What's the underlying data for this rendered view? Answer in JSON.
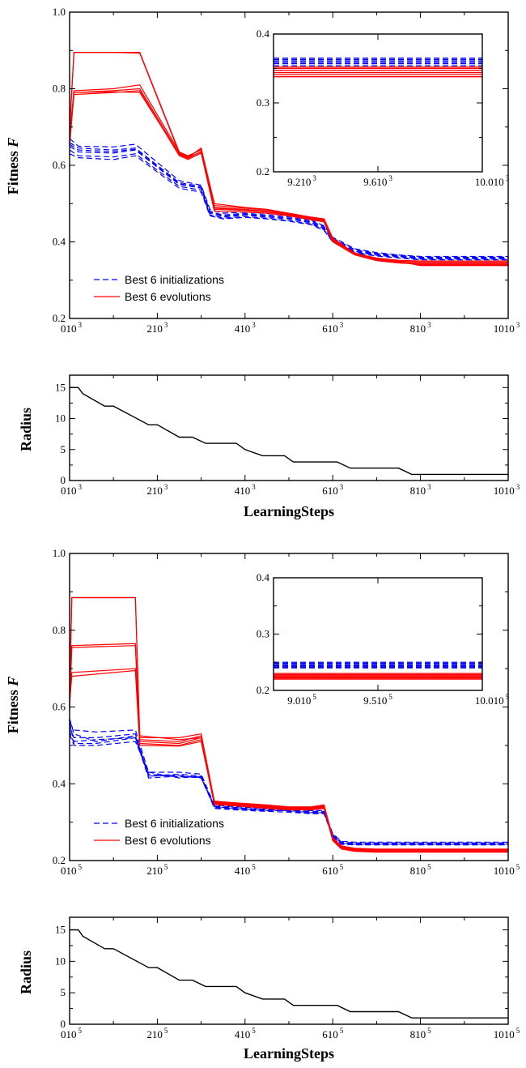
{
  "chart_data": [
    {
      "type": "line",
      "ylabel": "Fitness F",
      "xlim": [
        0,
        1000
      ],
      "ylim": [
        0.2,
        1.0
      ],
      "xticks": [
        "010 3",
        "210 3",
        "410 3",
        "610 3",
        "810 3",
        "1010 3"
      ],
      "yticks": [
        "0.2",
        "0.4",
        "0.6",
        "0.8",
        "1.0"
      ],
      "legend": {
        "position": "lower-left",
        "entries": [
          "Best 6 initializations",
          "Best 6 evolutions"
        ]
      },
      "series": [
        {
          "name": "Best 6 initializations",
          "style": "dashed",
          "color": "#0000ff",
          "x": [
            0,
            20,
            100,
            150,
            250,
            300,
            320,
            350,
            400,
            450,
            500,
            550,
            580,
            600,
            650,
            700,
            750,
            800,
            1000
          ],
          "curves": [
            [
              0.66,
              0.645,
              0.64,
              0.645,
              0.555,
              0.545,
              0.48,
              0.47,
              0.475,
              0.47,
              0.465,
              0.455,
              0.44,
              0.41,
              0.38,
              0.37,
              0.365,
              0.36,
              0.36
            ],
            [
              0.65,
              0.635,
              0.632,
              0.64,
              0.55,
              0.54,
              0.475,
              0.465,
              0.47,
              0.465,
              0.46,
              0.45,
              0.435,
              0.405,
              0.375,
              0.367,
              0.362,
              0.357,
              0.357
            ],
            [
              0.64,
              0.625,
              0.622,
              0.63,
              0.545,
              0.535,
              0.47,
              0.462,
              0.466,
              0.462,
              0.456,
              0.447,
              0.432,
              0.402,
              0.373,
              0.365,
              0.36,
              0.355,
              0.355
            ],
            [
              0.67,
              0.65,
              0.648,
              0.655,
              0.56,
              0.548,
              0.485,
              0.475,
              0.478,
              0.474,
              0.468,
              0.458,
              0.442,
              0.412,
              0.382,
              0.372,
              0.366,
              0.362,
              0.362
            ],
            [
              0.63,
              0.62,
              0.615,
              0.625,
              0.54,
              0.53,
              0.468,
              0.46,
              0.464,
              0.46,
              0.454,
              0.445,
              0.43,
              0.4,
              0.371,
              0.363,
              0.358,
              0.353,
              0.353
            ],
            [
              0.655,
              0.64,
              0.636,
              0.642,
              0.552,
              0.542,
              0.478,
              0.468,
              0.472,
              0.468,
              0.462,
              0.452,
              0.437,
              0.407,
              0.377,
              0.368,
              0.363,
              0.358,
              0.358
            ]
          ]
        },
        {
          "name": "Best 6 evolutions",
          "style": "solid",
          "color": "#ff0000",
          "x": [
            0,
            10,
            100,
            160,
            250,
            270,
            300,
            330,
            400,
            450,
            500,
            550,
            580,
            600,
            650,
            700,
            750,
            800,
            1000
          ],
          "curves": [
            [
              0.7,
              0.895,
              0.895,
              0.895,
              0.635,
              0.62,
              0.645,
              0.5,
              0.49,
              0.485,
              0.475,
              0.465,
              0.46,
              0.41,
              0.37,
              0.358,
              0.352,
              0.35,
              0.35
            ],
            [
              0.68,
              0.795,
              0.8,
              0.81,
              0.635,
              0.625,
              0.64,
              0.49,
              0.485,
              0.48,
              0.472,
              0.462,
              0.458,
              0.405,
              0.37,
              0.355,
              0.35,
              0.347,
              0.347
            ],
            [
              0.67,
              0.79,
              0.795,
              0.8,
              0.63,
              0.62,
              0.635,
              0.485,
              0.482,
              0.478,
              0.47,
              0.46,
              0.455,
              0.402,
              0.368,
              0.353,
              0.347,
              0.344,
              0.344
            ],
            [
              0.66,
              0.785,
              0.79,
              0.795,
              0.625,
              0.615,
              0.632,
              0.48,
              0.478,
              0.475,
              0.468,
              0.458,
              0.452,
              0.4,
              0.366,
              0.351,
              0.345,
              0.342,
              0.342
            ],
            [
              0.65,
              0.79,
              0.792,
              0.79,
              0.628,
              0.618,
              0.636,
              0.488,
              0.484,
              0.479,
              0.471,
              0.461,
              0.456,
              0.403,
              0.369,
              0.354,
              0.348,
              0.34,
              0.34
            ],
            [
              0.69,
              0.895,
              0.895,
              0.893,
              0.632,
              0.622,
              0.642,
              0.495,
              0.488,
              0.483,
              0.474,
              0.464,
              0.459,
              0.408,
              0.371,
              0.356,
              0.349,
              0.338,
              0.338
            ]
          ]
        }
      ]
    },
    {
      "type": "line",
      "inset": true,
      "ylim": [
        0.2,
        0.4
      ],
      "xlim": [
        9000,
        10000
      ],
      "xticks": [
        "9.210 3",
        "9.610 3",
        "10.010 3"
      ],
      "yticks": [
        "0.2",
        "0.3",
        "0.4"
      ],
      "series": [
        {
          "name": "Best 6 initializations",
          "style": "dashed",
          "color": "#0000ff",
          "levels": [
            0.354,
            0.357,
            0.359,
            0.361,
            0.363,
            0.365
          ]
        },
        {
          "name": "Best 6 evolutions",
          "style": "solid",
          "color": "#ff0000",
          "levels": [
            0.338,
            0.341,
            0.344,
            0.347,
            0.35,
            0.352
          ]
        }
      ]
    },
    {
      "type": "line",
      "ylabel": "Radius",
      "xlabel": "LearningSteps",
      "xlim": [
        0,
        1000
      ],
      "ylim": [
        0,
        17
      ],
      "xticks": [
        "010 3",
        "210 3",
        "410 3",
        "610 3",
        "810 3",
        "1010 3"
      ],
      "yticks": [
        "0",
        "5",
        "10",
        "15"
      ],
      "series": [
        {
          "name": "radius",
          "color": "#000000",
          "x": [
            0,
            20,
            30,
            80,
            100,
            180,
            200,
            250,
            280,
            310,
            380,
            400,
            440,
            490,
            510,
            610,
            640,
            750,
            780,
            1000
          ],
          "values": [
            15,
            15,
            14,
            12,
            12,
            9,
            9,
            7,
            7,
            6,
            6,
            5,
            4,
            4,
            3,
            3,
            2,
            2,
            1,
            1
          ]
        }
      ]
    },
    {
      "type": "line",
      "ylabel": "Fitness F",
      "xlim": [
        0,
        1000
      ],
      "ylim": [
        0.2,
        1.0
      ],
      "xticks": [
        "010 5",
        "210 5",
        "410 5",
        "610 5",
        "810 5",
        "1010 5"
      ],
      "yticks": [
        "0.2",
        "0.4",
        "0.6",
        "0.8",
        "1.0"
      ],
      "legend": {
        "position": "lower-left",
        "entries": [
          "Best 6 initializations",
          "Best 6 evolutions"
        ]
      },
      "series": [
        {
          "name": "Best 6 initializations",
          "style": "dashed",
          "color": "#0000ff",
          "x": [
            0,
            10,
            60,
            150,
            180,
            250,
            300,
            330,
            380,
            450,
            500,
            550,
            580,
            600,
            620,
            650,
            700,
            800,
            1000
          ],
          "curves": [
            [
              0.56,
              0.54,
              0.535,
              0.54,
              0.43,
              0.43,
              0.425,
              0.345,
              0.34,
              0.335,
              0.335,
              0.33,
              0.33,
              0.27,
              0.25,
              0.248,
              0.248,
              0.248,
              0.248
            ],
            [
              0.55,
              0.52,
              0.52,
              0.53,
              0.42,
              0.425,
              0.42,
              0.34,
              0.335,
              0.33,
              0.332,
              0.328,
              0.328,
              0.268,
              0.248,
              0.246,
              0.246,
              0.246,
              0.246
            ],
            [
              0.57,
              0.53,
              0.51,
              0.525,
              0.425,
              0.418,
              0.418,
              0.342,
              0.338,
              0.332,
              0.33,
              0.326,
              0.326,
              0.266,
              0.246,
              0.244,
              0.244,
              0.244,
              0.244
            ],
            [
              0.54,
              0.505,
              0.505,
              0.52,
              0.415,
              0.42,
              0.415,
              0.338,
              0.334,
              0.334,
              0.328,
              0.324,
              0.324,
              0.264,
              0.244,
              0.242,
              0.242,
              0.242,
              0.242
            ],
            [
              0.53,
              0.5,
              0.5,
              0.51,
              0.43,
              0.415,
              0.42,
              0.336,
              0.332,
              0.328,
              0.326,
              0.322,
              0.322,
              0.262,
              0.242,
              0.241,
              0.241,
              0.241,
              0.241
            ],
            [
              0.56,
              0.51,
              0.515,
              0.52,
              0.42,
              0.422,
              0.416,
              0.34,
              0.336,
              0.33,
              0.33,
              0.325,
              0.325,
              0.265,
              0.245,
              0.243,
              0.243,
              0.243,
              0.243
            ]
          ]
        },
        {
          "name": "Best 6 evolutions",
          "style": "solid",
          "color": "#ff0000",
          "x": [
            0,
            5,
            150,
            160,
            250,
            300,
            330,
            380,
            450,
            500,
            550,
            580,
            600,
            620,
            650,
            700,
            800,
            1000
          ],
          "curves": [
            [
              0.6,
              0.885,
              0.885,
              0.52,
              0.52,
              0.53,
              0.355,
              0.35,
              0.345,
              0.34,
              0.34,
              0.345,
              0.26,
              0.238,
              0.232,
              0.23,
              0.23,
              0.23
            ],
            [
              0.62,
              0.76,
              0.765,
              0.515,
              0.51,
              0.525,
              0.352,
              0.348,
              0.342,
              0.338,
              0.338,
              0.342,
              0.258,
              0.236,
              0.23,
              0.228,
              0.228,
              0.228
            ],
            [
              0.59,
              0.755,
              0.76,
              0.51,
              0.505,
              0.52,
              0.35,
              0.346,
              0.34,
              0.336,
              0.336,
              0.34,
              0.256,
              0.234,
              0.228,
              0.226,
              0.226,
              0.226
            ],
            [
              0.63,
              0.69,
              0.7,
              0.505,
              0.5,
              0.515,
              0.348,
              0.344,
              0.338,
              0.334,
              0.334,
              0.338,
              0.254,
              0.232,
              0.226,
              0.224,
              0.224,
              0.224
            ],
            [
              0.61,
              0.68,
              0.695,
              0.5,
              0.498,
              0.51,
              0.346,
              0.342,
              0.336,
              0.332,
              0.332,
              0.336,
              0.252,
              0.23,
              0.224,
              0.222,
              0.222,
              0.222
            ],
            [
              0.64,
              0.885,
              0.885,
              0.525,
              0.515,
              0.52,
              0.354,
              0.349,
              0.344,
              0.339,
              0.339,
              0.344,
              0.259,
              0.237,
              0.231,
              0.229,
              0.229,
              0.229
            ]
          ]
        }
      ]
    },
    {
      "type": "line",
      "inset": true,
      "ylim": [
        0.2,
        0.4
      ],
      "xlim": [
        900000,
        1000000
      ],
      "xticks": [
        "9.010 5",
        "9.510 5",
        "10.010 5"
      ],
      "yticks": [
        "0.2",
        "0.3",
        "0.4"
      ],
      "series": [
        {
          "name": "Best 6 initializations",
          "style": "dashed",
          "color": "#0000ff",
          "levels": [
            0.24,
            0.242,
            0.244,
            0.246,
            0.248,
            0.25
          ]
        },
        {
          "name": "Best 6 evolutions",
          "style": "solid",
          "color": "#ff0000",
          "levels": [
            0.22,
            0.222,
            0.224,
            0.226,
            0.228,
            0.23
          ]
        }
      ]
    },
    {
      "type": "line",
      "ylabel": "Radius",
      "xlabel": "LearningSteps",
      "xlim": [
        0,
        1000
      ],
      "ylim": [
        0,
        17
      ],
      "xticks": [
        "010 5",
        "210 5",
        "410 5",
        "610 5",
        "810 5",
        "1010 5"
      ],
      "yticks": [
        "0",
        "5",
        "10",
        "15"
      ],
      "series": [
        {
          "name": "radius",
          "color": "#000000",
          "x": [
            0,
            20,
            30,
            80,
            100,
            180,
            200,
            250,
            280,
            310,
            380,
            400,
            440,
            490,
            510,
            610,
            640,
            750,
            780,
            1000
          ],
          "values": [
            15,
            15,
            14,
            12,
            12,
            9,
            9,
            7,
            7,
            6,
            6,
            5,
            4,
            4,
            3,
            3,
            2,
            2,
            1,
            1
          ]
        }
      ]
    }
  ]
}
